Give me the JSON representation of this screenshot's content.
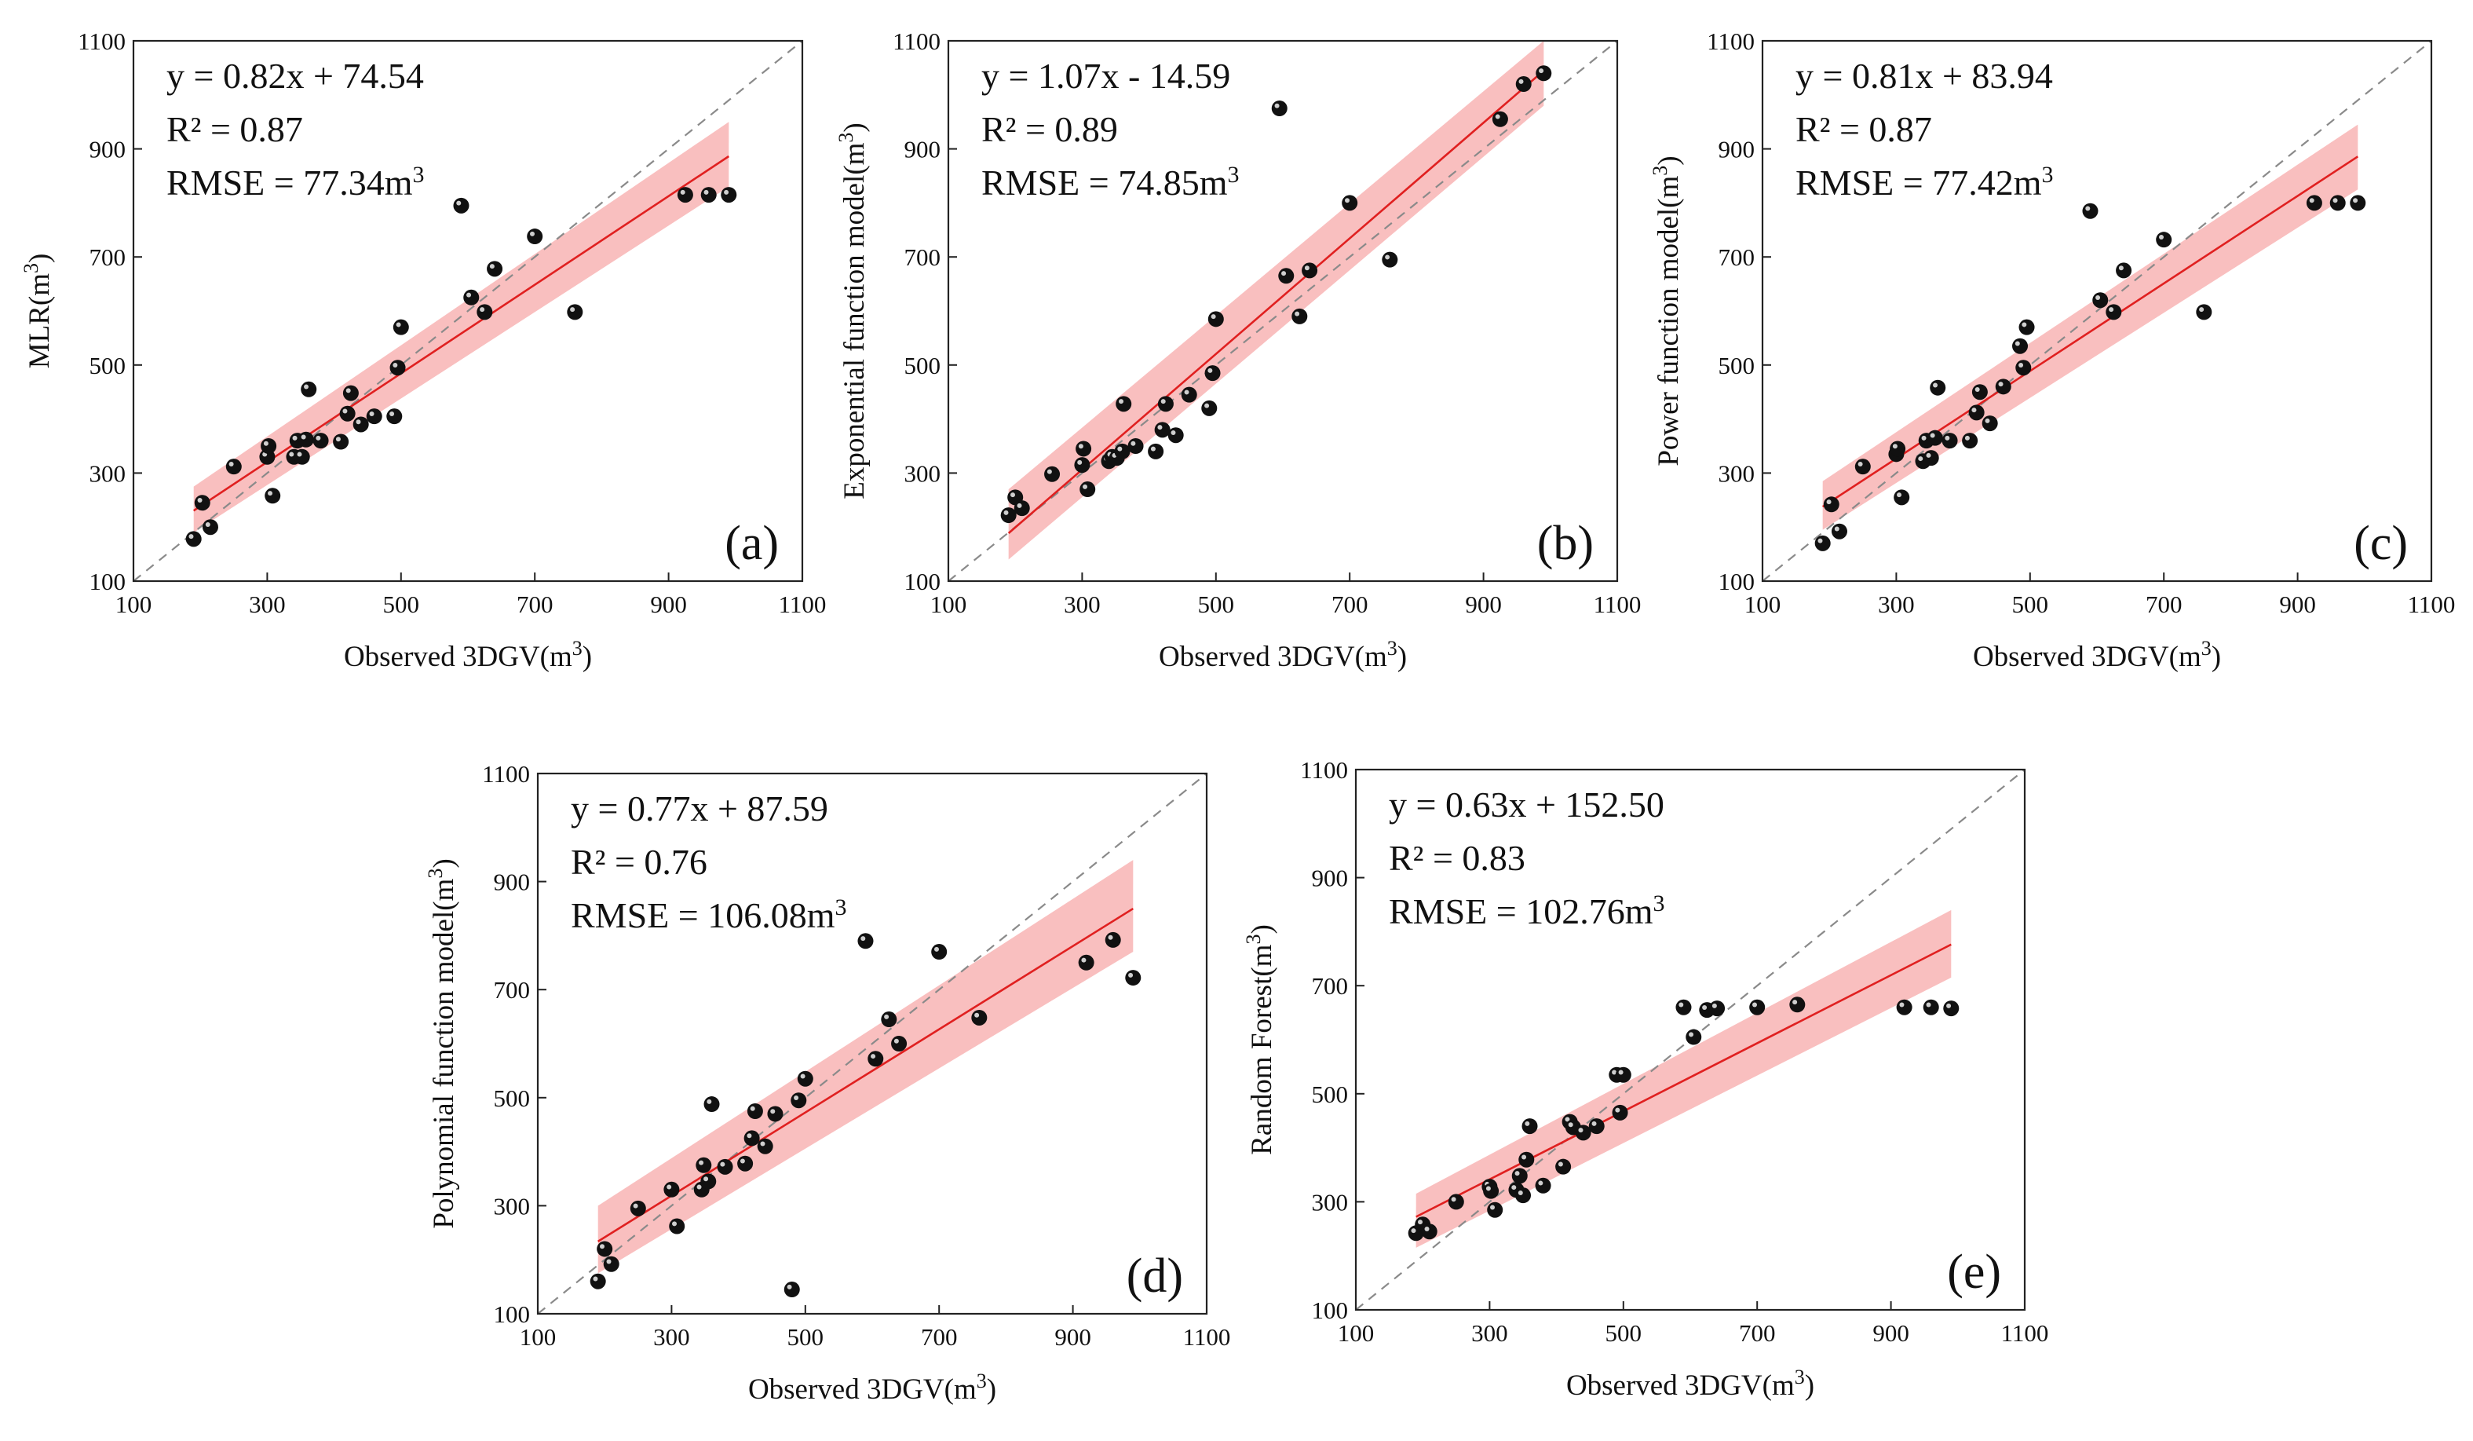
{
  "chart_data": [
    {
      "id": "a",
      "type": "scatter",
      "panel_label": "(a)",
      "ylabel_main": "MLR(m",
      "ylabel_sup": "3",
      "ylabel_end": ")",
      "xlabel_main": "Observed 3DGV(m",
      "xlabel_sup": "3",
      "xlabel_end": ")",
      "xlim": [
        100,
        1100
      ],
      "ylim": [
        100,
        1100
      ],
      "x_ticks": [
        "100",
        "300",
        "500",
        "700",
        "900",
        "1100"
      ],
      "y_ticks": [
        "100",
        "300",
        "500",
        "700",
        "900",
        "1100"
      ],
      "equation": "y = 0.82x + 74.54",
      "r2_text": "R² = 0.87",
      "rmse_main": "RMSE = 77.34m",
      "rmse_sup": "3",
      "fit": {
        "slope": 0.82,
        "intercept": 74.54,
        "x_range": [
          190,
          990
        ]
      },
      "band": [
        [
          190,
          275,
          190
        ],
        [
          990,
          950,
          830
        ]
      ],
      "line_color": "#e02020",
      "band_color": "#f7a9a9",
      "points": [
        [
          190,
          178
        ],
        [
          203,
          245
        ],
        [
          215,
          200
        ],
        [
          250,
          312
        ],
        [
          300,
          330
        ],
        [
          302,
          350
        ],
        [
          308,
          258
        ],
        [
          340,
          330
        ],
        [
          345,
          360
        ],
        [
          352,
          330
        ],
        [
          358,
          362
        ],
        [
          362,
          455
        ],
        [
          380,
          360
        ],
        [
          410,
          358
        ],
        [
          420,
          410
        ],
        [
          425,
          448
        ],
        [
          440,
          390
        ],
        [
          460,
          405
        ],
        [
          490,
          405
        ],
        [
          495,
          495
        ],
        [
          500,
          570
        ],
        [
          590,
          795
        ],
        [
          605,
          625
        ],
        [
          625,
          598
        ],
        [
          640,
          678
        ],
        [
          700,
          738
        ],
        [
          760,
          598
        ],
        [
          925,
          815
        ],
        [
          960,
          815
        ],
        [
          990,
          815
        ]
      ]
    },
    {
      "id": "b",
      "type": "scatter",
      "panel_label": "(b)",
      "ylabel_main": "Exponential function model(m",
      "ylabel_sup": "3",
      "ylabel_end": ")",
      "xlabel_main": "Observed 3DGV(m",
      "xlabel_sup": "3",
      "xlabel_end": ")",
      "xlim": [
        100,
        1100
      ],
      "ylim": [
        100,
        1100
      ],
      "x_ticks": [
        "100",
        "300",
        "500",
        "700",
        "900",
        "1100"
      ],
      "y_ticks": [
        "100",
        "300",
        "500",
        "700",
        "900",
        "1100"
      ],
      "equation": "y = 1.07x - 14.59",
      "r2_text": "R² = 0.89",
      "rmse_main": "RMSE = 74.85m",
      "rmse_sup": "3",
      "fit": {
        "slope": 1.07,
        "intercept": -14.59,
        "x_range": [
          190,
          990
        ]
      },
      "band": [
        [
          190,
          270,
          140
        ],
        [
          990,
          1100,
          980
        ]
      ],
      "line_color": "#e02020",
      "band_color": "#f7a9a9",
      "points": [
        [
          190,
          222
        ],
        [
          200,
          255
        ],
        [
          210,
          235
        ],
        [
          255,
          298
        ],
        [
          300,
          315
        ],
        [
          302,
          345
        ],
        [
          308,
          270
        ],
        [
          340,
          322
        ],
        [
          345,
          330
        ],
        [
          352,
          328
        ],
        [
          360,
          340
        ],
        [
          362,
          428
        ],
        [
          380,
          350
        ],
        [
          410,
          340
        ],
        [
          420,
          380
        ],
        [
          425,
          428
        ],
        [
          440,
          370
        ],
        [
          460,
          445
        ],
        [
          490,
          420
        ],
        [
          495,
          485
        ],
        [
          500,
          585
        ],
        [
          595,
          975
        ],
        [
          605,
          665
        ],
        [
          625,
          590
        ],
        [
          640,
          675
        ],
        [
          700,
          800
        ],
        [
          760,
          695
        ],
        [
          925,
          955
        ],
        [
          960,
          1020
        ],
        [
          990,
          1040
        ]
      ]
    },
    {
      "id": "c",
      "type": "scatter",
      "panel_label": "(c)",
      "ylabel_main": "Power function model(m",
      "ylabel_sup": "3",
      "ylabel_end": ")",
      "xlabel_main": "Observed 3DGV(m",
      "xlabel_sup": "3",
      "xlabel_end": ")",
      "xlim": [
        100,
        1100
      ],
      "ylim": [
        100,
        1100
      ],
      "x_ticks": [
        "100",
        "300",
        "500",
        "700",
        "900",
        "1100"
      ],
      "y_ticks": [
        "100",
        "300",
        "500",
        "700",
        "900",
        "1100"
      ],
      "equation": "y = 0.81x + 83.94",
      "r2_text": "R² = 0.87",
      "rmse_main": "RMSE = 77.42m",
      "rmse_sup": "3",
      "fit": {
        "slope": 0.81,
        "intercept": 83.94,
        "x_range": [
          190,
          990
        ]
      },
      "band": [
        [
          190,
          285,
          195
        ],
        [
          990,
          945,
          825
        ]
      ],
      "line_color": "#e02020",
      "band_color": "#f7a9a9",
      "points": [
        [
          190,
          170
        ],
        [
          203,
          242
        ],
        [
          215,
          192
        ],
        [
          250,
          312
        ],
        [
          300,
          335
        ],
        [
          302,
          345
        ],
        [
          308,
          255
        ],
        [
          340,
          322
        ],
        [
          345,
          360
        ],
        [
          352,
          328
        ],
        [
          358,
          365
        ],
        [
          362,
          458
        ],
        [
          380,
          360
        ],
        [
          410,
          360
        ],
        [
          420,
          412
        ],
        [
          425,
          450
        ],
        [
          440,
          392
        ],
        [
          460,
          460
        ],
        [
          485,
          535
        ],
        [
          490,
          495
        ],
        [
          495,
          570
        ],
        [
          590,
          785
        ],
        [
          605,
          620
        ],
        [
          625,
          598
        ],
        [
          640,
          675
        ],
        [
          700,
          732
        ],
        [
          760,
          598
        ],
        [
          925,
          800
        ],
        [
          960,
          800
        ],
        [
          990,
          800
        ]
      ]
    },
    {
      "id": "d",
      "type": "scatter",
      "panel_label": "(d)",
      "ylabel_main": "Polynomial function model(m",
      "ylabel_sup": "3",
      "ylabel_end": ")",
      "xlabel_main": "Observed 3DGV(m",
      "xlabel_sup": "3",
      "xlabel_end": ")",
      "xlim": [
        100,
        1100
      ],
      "ylim": [
        100,
        1100
      ],
      "x_ticks": [
        "100",
        "300",
        "500",
        "700",
        "900",
        "1100"
      ],
      "y_ticks": [
        "100",
        "300",
        "500",
        "700",
        "900",
        "1100"
      ],
      "equation": "y = 0.77x + 87.59",
      "r2_text": "R² = 0.76",
      "rmse_main": "RMSE = 106.08m",
      "rmse_sup": "3",
      "fit": {
        "slope": 0.77,
        "intercept": 87.59,
        "x_range": [
          190,
          990
        ]
      },
      "band": [
        [
          190,
          300,
          175
        ],
        [
          990,
          940,
          770
        ]
      ],
      "line_color": "#e02020",
      "band_color": "#f7a9a9",
      "points": [
        [
          190,
          160
        ],
        [
          200,
          220
        ],
        [
          210,
          192
        ],
        [
          250,
          295
        ],
        [
          300,
          330
        ],
        [
          308,
          262
        ],
        [
          345,
          330
        ],
        [
          348,
          375
        ],
        [
          355,
          345
        ],
        [
          360,
          488
        ],
        [
          380,
          372
        ],
        [
          410,
          378
        ],
        [
          420,
          425
        ],
        [
          425,
          475
        ],
        [
          440,
          410
        ],
        [
          455,
          470
        ],
        [
          480,
          145
        ],
        [
          490,
          495
        ],
        [
          500,
          535
        ],
        [
          590,
          790
        ],
        [
          605,
          572
        ],
        [
          625,
          645
        ],
        [
          640,
          600
        ],
        [
          700,
          770
        ],
        [
          760,
          648
        ],
        [
          920,
          750
        ],
        [
          960,
          792
        ],
        [
          990,
          722
        ]
      ]
    },
    {
      "id": "e",
      "type": "scatter",
      "panel_label": "(e)",
      "ylabel_main": "Random Forest(m",
      "ylabel_sup": "3",
      "ylabel_end": ")",
      "xlabel_main": "Observed 3DGV(m",
      "xlabel_sup": "3",
      "xlabel_end": ")",
      "xlim": [
        100,
        1100
      ],
      "ylim": [
        100,
        1100
      ],
      "x_ticks": [
        "100",
        "300",
        "500",
        "700",
        "900",
        "1100"
      ],
      "y_ticks": [
        "100",
        "300",
        "500",
        "700",
        "900",
        "1100"
      ],
      "equation": "y = 0.63x + 152.50",
      "r2_text": "R² = 0.83",
      "rmse_main": "RMSE = 102.76m",
      "rmse_sup": "3",
      "fit": {
        "slope": 0.63,
        "intercept": 152.5,
        "x_range": [
          190,
          990
        ]
      },
      "band": [
        [
          190,
          315,
          215
        ],
        [
          990,
          840,
          715
        ]
      ],
      "line_color": "#e02020",
      "band_color": "#f7a9a9",
      "points": [
        [
          190,
          242
        ],
        [
          200,
          258
        ],
        [
          210,
          245
        ],
        [
          250,
          300
        ],
        [
          300,
          328
        ],
        [
          302,
          320
        ],
        [
          308,
          285
        ],
        [
          340,
          322
        ],
        [
          345,
          348
        ],
        [
          350,
          312
        ],
        [
          355,
          378
        ],
        [
          360,
          440
        ],
        [
          380,
          330
        ],
        [
          410,
          365
        ],
        [
          420,
          448
        ],
        [
          425,
          438
        ],
        [
          440,
          428
        ],
        [
          460,
          440
        ],
        [
          490,
          535
        ],
        [
          495,
          465
        ],
        [
          500,
          535
        ],
        [
          590,
          660
        ],
        [
          605,
          605
        ],
        [
          625,
          655
        ],
        [
          640,
          658
        ],
        [
          700,
          660
        ],
        [
          760,
          665
        ],
        [
          920,
          660
        ],
        [
          960,
          660
        ],
        [
          990,
          658
        ]
      ]
    }
  ]
}
